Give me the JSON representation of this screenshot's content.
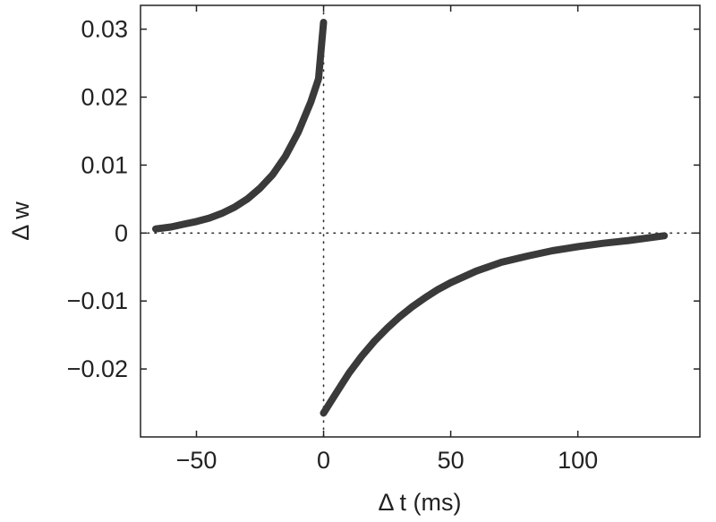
{
  "chart_data": {
    "type": "line",
    "title": "",
    "xlabel": "Δ t (ms)",
    "ylabel": "Δ w",
    "xlim": [
      -72,
      148
    ],
    "ylim": [
      -0.03,
      0.0335
    ],
    "xticks": [
      -50,
      0,
      50,
      100
    ],
    "xtick_labels": [
      "−50",
      "0",
      "50",
      "100"
    ],
    "yticks": [
      0.03,
      0.02,
      0.01,
      0,
      -0.01,
      -0.02
    ],
    "ytick_labels": [
      "0.03",
      "0.02",
      "0.01",
      "0",
      "−0.01",
      "−0.02"
    ],
    "grid": false,
    "reference_lines": [
      {
        "orientation": "horizontal",
        "value": 0,
        "style": "dotted"
      },
      {
        "orientation": "vertical",
        "value": 0,
        "style": "dotted"
      }
    ],
    "series": [
      {
        "color": "#3a3a3a",
        "points": [
          [
            -66,
            0.0006
          ],
          [
            -60,
            0.0009
          ],
          [
            -55,
            0.0013
          ],
          [
            -50,
            0.0017
          ],
          [
            -45,
            0.0022
          ],
          [
            -40,
            0.0029
          ],
          [
            -35,
            0.0038
          ],
          [
            -30,
            0.005
          ],
          [
            -25,
            0.0066
          ],
          [
            -20,
            0.0086
          ],
          [
            -15,
            0.0113
          ],
          [
            -10,
            0.0148
          ],
          [
            -5,
            0.0193
          ],
          [
            -2,
            0.0227
          ],
          [
            0,
            0.031
          ]
        ]
      },
      {
        "color": "#3a3a3a",
        "points": [
          [
            0,
            -0.0265
          ],
          [
            5,
            -0.0235
          ],
          [
            10,
            -0.0206
          ],
          [
            15,
            -0.0181
          ],
          [
            20,
            -0.0159
          ],
          [
            25,
            -0.014
          ],
          [
            30,
            -0.0123
          ],
          [
            35,
            -0.0108
          ],
          [
            40,
            -0.0095
          ],
          [
            45,
            -0.0083
          ],
          [
            50,
            -0.0073
          ],
          [
            60,
            -0.0056
          ],
          [
            70,
            -0.0043
          ],
          [
            80,
            -0.0034
          ],
          [
            90,
            -0.0026
          ],
          [
            100,
            -0.002
          ],
          [
            110,
            -0.0015
          ],
          [
            120,
            -0.0011
          ],
          [
            134,
            -0.0004
          ]
        ]
      }
    ]
  }
}
